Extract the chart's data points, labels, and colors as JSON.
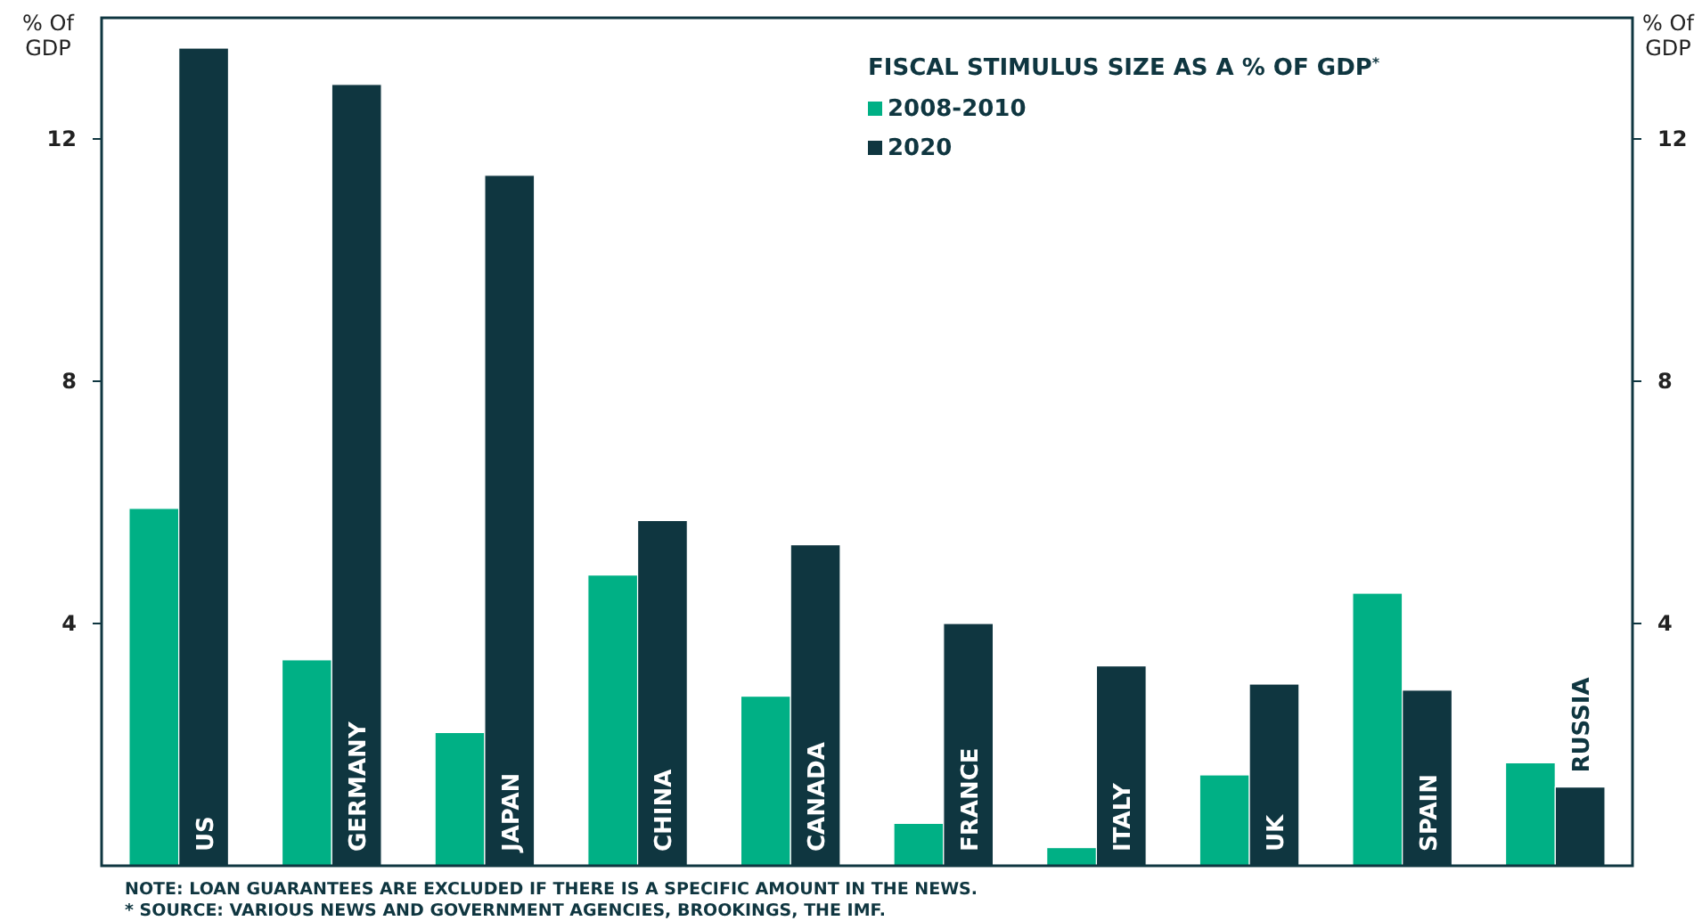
{
  "chart_data": {
    "type": "bar",
    "legend_title": "FISCAL STIMULUS SIZE AS A % OF GDP$^{*}$",
    "categories": [
      "US",
      "GERMANY",
      "JAPAN",
      "CHINA",
      "CANADA",
      "FRANCE",
      "ITALY",
      "UK",
      "SPAIN",
      "RUSSIA"
    ],
    "series": [
      {
        "name": "2008-2010",
        "color": "#00b085",
        "values": [
          5.9,
          3.4,
          2.2,
          4.8,
          2.8,
          0.7,
          0.3,
          1.5,
          4.5,
          1.7
        ]
      },
      {
        "name": "2020",
        "color": "#0f3640",
        "values": [
          13.5,
          12.9,
          11.4,
          5.7,
          5.3,
          4.0,
          3.3,
          3.0,
          2.9,
          1.3
        ]
      }
    ],
    "ylabel": "% Of GDP",
    "y2label": "% Of GDP",
    "ylim": [
      0,
      14
    ],
    "yticks": [
      4,
      8,
      12
    ],
    "y2lim": [
      0,
      14
    ],
    "y2ticks": [
      4,
      8,
      12
    ],
    "legend": "top",
    "grid": false,
    "annotations": [
      "NOTE: LOAN GUARANTEES ARE EXCLUDED IF THERE IS A SPECIFIC AMOUNT IN THE NEWS.",
      "* SOURCE: VARIOUS NEWS AND GOVERNMENT AGENCIES, BROOKINGS, THE IMF."
    ]
  }
}
